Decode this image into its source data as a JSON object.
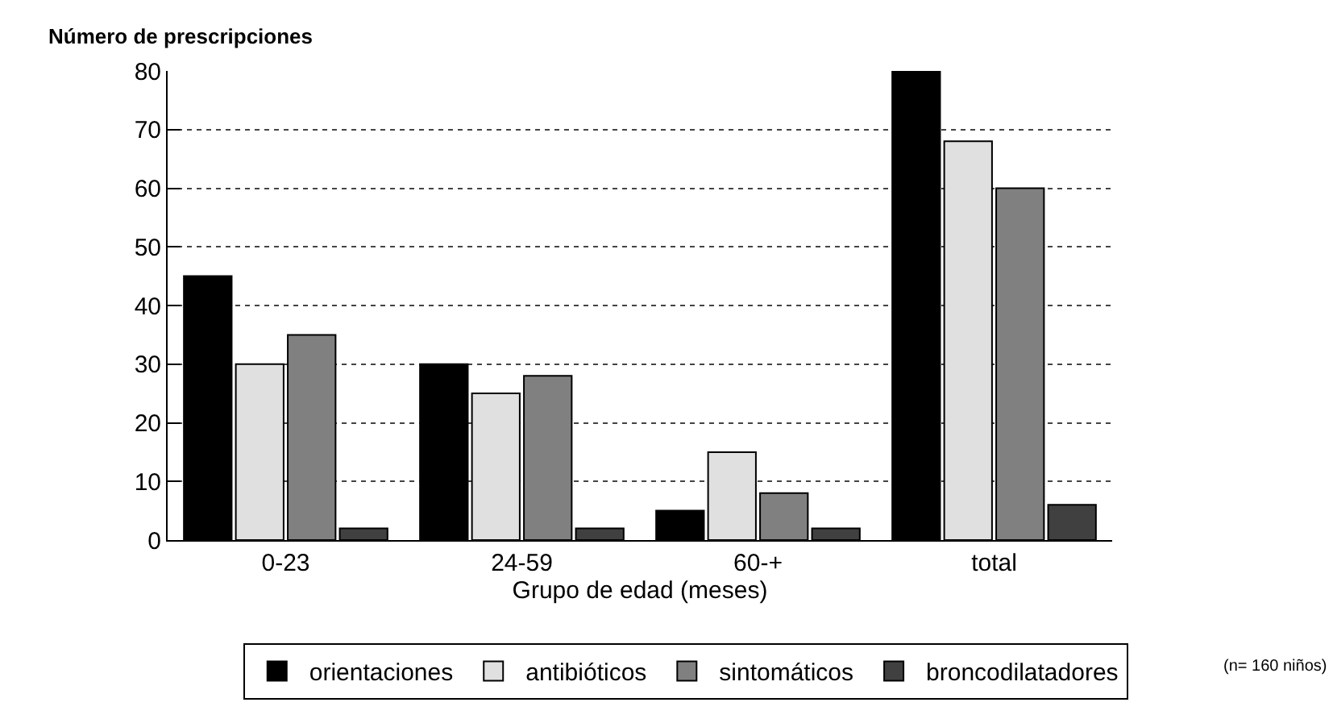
{
  "chart_data": {
    "type": "bar",
    "ylabel": "Número de prescripciones",
    "xlabel": "Grupo de edad (meses)",
    "categories": [
      "0-23",
      "24-59",
      "60-+",
      "total"
    ],
    "series": [
      {
        "name": "orientaciones",
        "color": "#000000",
        "values": [
          45,
          30,
          5,
          80
        ]
      },
      {
        "name": "antibióticos",
        "color": "#e0e0e0",
        "values": [
          30,
          25,
          15,
          68
        ]
      },
      {
        "name": "sintomáticos",
        "color": "#808080",
        "values": [
          35,
          28,
          8,
          60
        ]
      },
      {
        "name": "broncodilatadores",
        "color": "#404040",
        "values": [
          2,
          2,
          2,
          6
        ]
      }
    ],
    "ylim": [
      0,
      80
    ],
    "yticks": [
      0,
      10,
      20,
      30,
      40,
      50,
      60,
      70,
      80
    ],
    "grid": "y",
    "legend": "bottom",
    "annotations": [
      "(n= 160 niños)"
    ]
  }
}
